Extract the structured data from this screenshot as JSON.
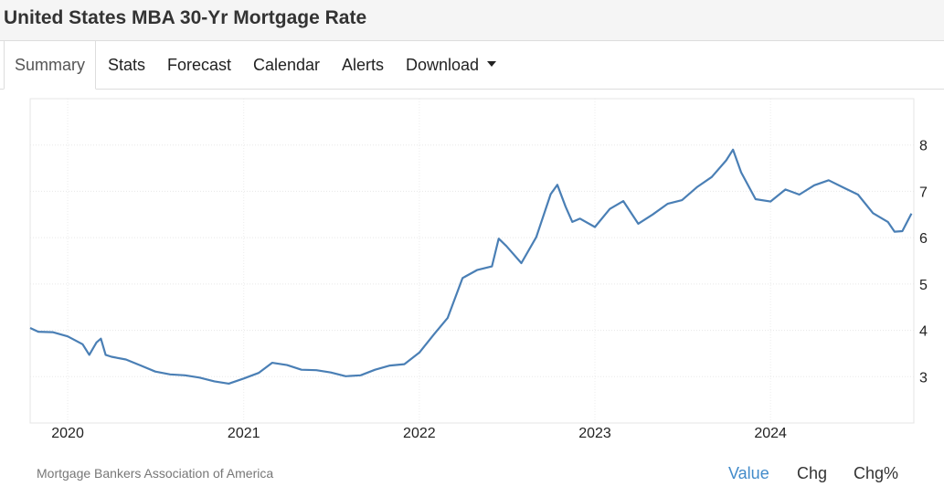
{
  "header": {
    "title": "United States MBA 30-Yr Mortgage Rate"
  },
  "tabs": [
    {
      "label": "Summary",
      "active": true
    },
    {
      "label": "Stats"
    },
    {
      "label": "Forecast"
    },
    {
      "label": "Calendar"
    },
    {
      "label": "Alerts"
    },
    {
      "label": "Download",
      "has_dropdown": true
    }
  ],
  "footer": {
    "source": "Mortgage Bankers Association of America",
    "buttons": [
      {
        "label": "Value",
        "active": true
      },
      {
        "label": "Chg"
      },
      {
        "label": "Chg%"
      }
    ]
  },
  "colors": {
    "line": "#4a7fb5",
    "active_link": "#428bca"
  },
  "chart_data": {
    "type": "line",
    "title": "",
    "xlabel": "",
    "ylabel": "",
    "x_tick_labels": [
      "2020",
      "2021",
      "2022",
      "2023",
      "2024"
    ],
    "y_tick_labels": [
      "3",
      "4",
      "5",
      "6",
      "7",
      "8"
    ],
    "ylim": [
      2,
      9
    ],
    "xlim": [
      "2019-10-15",
      "2024-10-25"
    ],
    "y_axis_side": "right",
    "grid": true,
    "series": [
      {
        "x": [
          "2019-10-15",
          "2019-11-01",
          "2019-12-01",
          "2020-01-01",
          "2020-02-01",
          "2020-02-15",
          "2020-03-01",
          "2020-03-10",
          "2020-03-20",
          "2020-04-01",
          "2020-05-01",
          "2020-06-01",
          "2020-07-01",
          "2020-08-01",
          "2020-09-01",
          "2020-10-01",
          "2020-11-01",
          "2020-12-01",
          "2021-01-01",
          "2021-02-01",
          "2021-03-01",
          "2021-04-01",
          "2021-05-01",
          "2021-06-01",
          "2021-07-01",
          "2021-08-01",
          "2021-09-01",
          "2021-10-01",
          "2021-11-01",
          "2021-12-01",
          "2022-01-01",
          "2022-02-01",
          "2022-03-01",
          "2022-04-01",
          "2022-05-01",
          "2022-06-01",
          "2022-06-15",
          "2022-07-01",
          "2022-08-01",
          "2022-09-01",
          "2022-10-01",
          "2022-10-15",
          "2022-11-01",
          "2022-11-15",
          "2022-12-01",
          "2023-01-01",
          "2023-02-01",
          "2023-03-01",
          "2023-04-01",
          "2023-05-01",
          "2023-06-01",
          "2023-07-01",
          "2023-08-01",
          "2023-09-01",
          "2023-10-01",
          "2023-10-15",
          "2023-11-01",
          "2023-12-01",
          "2024-01-01",
          "2024-02-01",
          "2024-03-01",
          "2024-04-01",
          "2024-05-01",
          "2024-06-01",
          "2024-07-01",
          "2024-08-01",
          "2024-09-01",
          "2024-09-15",
          "2024-10-01",
          "2024-10-20"
        ],
        "y": [
          4.05,
          3.97,
          3.96,
          3.87,
          3.7,
          3.47,
          3.74,
          3.82,
          3.47,
          3.43,
          3.37,
          3.24,
          3.11,
          3.05,
          3.03,
          2.98,
          2.9,
          2.85,
          2.96,
          3.08,
          3.3,
          3.25,
          3.15,
          3.14,
          3.09,
          3.01,
          3.03,
          3.15,
          3.24,
          3.27,
          3.52,
          3.92,
          4.27,
          5.13,
          5.3,
          5.38,
          5.98,
          5.82,
          5.45,
          6.01,
          6.94,
          7.14,
          6.67,
          6.34,
          6.41,
          6.23,
          6.62,
          6.79,
          6.3,
          6.5,
          6.73,
          6.81,
          7.09,
          7.31,
          7.67,
          7.9,
          7.41,
          6.83,
          6.78,
          7.04,
          6.93,
          7.13,
          7.24,
          7.08,
          6.93,
          6.53,
          6.34,
          6.13,
          6.14,
          6.52
        ]
      }
    ]
  }
}
